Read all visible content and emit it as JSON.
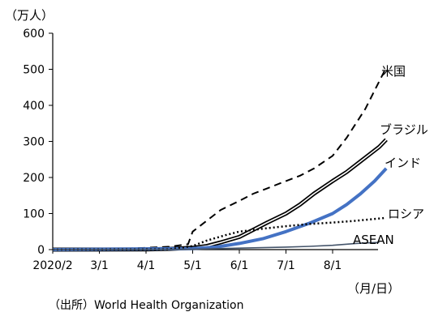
{
  "chart_data": {
    "type": "line",
    "y_unit": "（万人）",
    "x_unit": "（月/日）",
    "source": "（出所）World Health Organization",
    "ylim": [
      0,
      600
    ],
    "yticks": [
      "0",
      "100",
      "200",
      "300",
      "400",
      "500",
      "600"
    ],
    "xticks": [
      "2020/2",
      "3/1",
      "4/1",
      "5/1",
      "6/1",
      "7/1",
      "8/1"
    ],
    "grid": false,
    "series": [
      {
        "name": "米国",
        "style": "dashed",
        "color": "#000000",
        "points": [
          [
            0,
            0
          ],
          [
            1,
            0.1
          ],
          [
            2,
            5
          ],
          [
            2.5,
            8
          ],
          [
            2.9,
            15
          ],
          [
            3,
            50
          ],
          [
            3.3,
            80
          ],
          [
            3.6,
            110
          ],
          [
            4,
            135
          ],
          [
            4.3,
            155
          ],
          [
            4.6,
            170
          ],
          [
            5,
            190
          ],
          [
            5.3,
            205
          ],
          [
            5.6,
            225
          ],
          [
            6,
            260
          ],
          [
            6.3,
            310
          ],
          [
            6.7,
            390
          ],
          [
            7.15,
            505
          ]
        ]
      },
      {
        "name": "ブラジル",
        "style": "double",
        "color": "#000000",
        "points": [
          [
            0,
            0
          ],
          [
            2,
            0.5
          ],
          [
            2.5,
            2
          ],
          [
            3,
            5
          ],
          [
            3.3,
            10
          ],
          [
            3.6,
            20
          ],
          [
            4,
            35
          ],
          [
            4.3,
            55
          ],
          [
            4.6,
            75
          ],
          [
            5,
            100
          ],
          [
            5.3,
            125
          ],
          [
            5.6,
            155
          ],
          [
            6,
            190
          ],
          [
            6.3,
            215
          ],
          [
            6.6,
            245
          ],
          [
            7,
            285
          ],
          [
            7.15,
            305
          ]
        ]
      },
      {
        "name": "インド",
        "style": "thick",
        "color": "#4472C4",
        "points": [
          [
            0,
            0
          ],
          [
            3,
            3
          ],
          [
            3.5,
            7
          ],
          [
            4,
            17
          ],
          [
            4.5,
            30
          ],
          [
            5,
            50
          ],
          [
            5.5,
            73
          ],
          [
            6,
            100
          ],
          [
            6.3,
            125
          ],
          [
            6.6,
            155
          ],
          [
            6.9,
            190
          ],
          [
            7.15,
            225
          ]
        ]
      },
      {
        "name": "ロシア",
        "style": "dotted",
        "color": "#000000",
        "points": [
          [
            0,
            0
          ],
          [
            2.5,
            1
          ],
          [
            3,
            10
          ],
          [
            3.3,
            25
          ],
          [
            3.7,
            40
          ],
          [
            4,
            50
          ],
          [
            4.5,
            58
          ],
          [
            5,
            65
          ],
          [
            5.5,
            71
          ],
          [
            6,
            75
          ],
          [
            6.5,
            80
          ],
          [
            7.15,
            88
          ]
        ]
      },
      {
        "name": "ASEAN",
        "style": "solid",
        "color": "#44546A",
        "points": [
          [
            0,
            0
          ],
          [
            3,
            1
          ],
          [
            4,
            4
          ],
          [
            5,
            7
          ],
          [
            5.5,
            9
          ],
          [
            6,
            12
          ],
          [
            6.5,
            17
          ],
          [
            7,
            20
          ]
        ]
      }
    ]
  }
}
